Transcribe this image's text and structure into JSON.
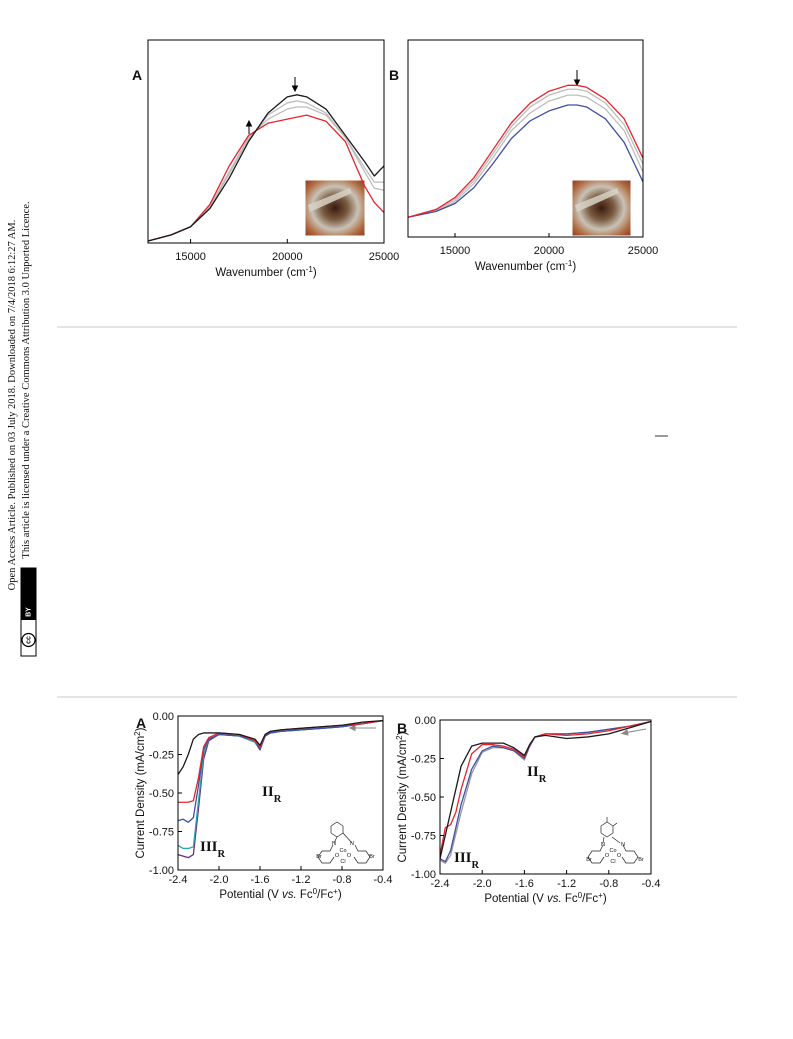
{
  "side_text": {
    "line1": "Open Access Article. Published on 03 July 2018. Downloaded on 7/4/2018 6:12:27 AM.",
    "line2": "This article is licensed under a Creative Commons Attribution 3.0 Unported Licence.",
    "badge_cc": "cc",
    "badge_by": "BY"
  },
  "chart_data": [
    {
      "type": "line",
      "panel": "A",
      "xlabel": [
        {
          "t": "Wavenumber (cm"
        },
        {
          "t": "-1",
          "sup": true
        },
        {
          "t": ")"
        }
      ],
      "xlim": [
        12800,
        25000
      ],
      "xticks": [
        15000,
        20000,
        25000
      ],
      "ylim": [
        0,
        1
      ],
      "x": [
        12800,
        14000,
        15000,
        16000,
        17000,
        18000,
        19000,
        20000,
        20500,
        21000,
        22000,
        23000,
        24000,
        24500,
        25000
      ],
      "series": [
        {
          "color": "#bdbdbd",
          "values": [
            0.01,
            0.04,
            0.08,
            0.18,
            0.35,
            0.52,
            0.61,
            0.66,
            0.67,
            0.67,
            0.63,
            0.52,
            0.35,
            0.27,
            0.26
          ]
        },
        {
          "color": "#bdbdbd",
          "values": [
            0.01,
            0.04,
            0.08,
            0.175,
            0.34,
            0.51,
            0.63,
            0.69,
            0.7,
            0.69,
            0.64,
            0.52,
            0.37,
            0.3,
            0.3
          ]
        },
        {
          "color": "#e8242b",
          "values": [
            0.01,
            0.04,
            0.08,
            0.19,
            0.38,
            0.53,
            0.59,
            0.61,
            0.62,
            0.63,
            0.6,
            0.5,
            0.28,
            0.2,
            0.15
          ]
        },
        {
          "color": "#1a1a1a",
          "values": [
            0.01,
            0.04,
            0.08,
            0.17,
            0.32,
            0.5,
            0.64,
            0.72,
            0.73,
            0.72,
            0.66,
            0.53,
            0.4,
            0.33,
            0.38
          ]
        }
      ],
      "inset_photo": true
    },
    {
      "type": "line",
      "panel": "B",
      "xlabel": [
        {
          "t": "Wavenumber (cm"
        },
        {
          "t": "-1",
          "sup": true
        },
        {
          "t": ")"
        }
      ],
      "xlim": [
        12500,
        25000
      ],
      "xticks": [
        15000,
        20000,
        25000
      ],
      "ylim": [
        0,
        1
      ],
      "x": [
        12500,
        14000,
        15000,
        16000,
        17000,
        18000,
        19000,
        20000,
        21000,
        21500,
        22000,
        23000,
        24000,
        25000
      ],
      "series": [
        {
          "color": "#bdbdbd",
          "values": [
            0.1,
            0.13,
            0.18,
            0.27,
            0.4,
            0.54,
            0.63,
            0.69,
            0.72,
            0.72,
            0.71,
            0.65,
            0.54,
            0.33
          ]
        },
        {
          "color": "#bdbdbd",
          "values": [
            0.1,
            0.135,
            0.19,
            0.285,
            0.42,
            0.56,
            0.66,
            0.72,
            0.75,
            0.75,
            0.74,
            0.68,
            0.57,
            0.37
          ]
        },
        {
          "color": "#3f4fa3",
          "values": [
            0.1,
            0.13,
            0.17,
            0.25,
            0.37,
            0.5,
            0.59,
            0.64,
            0.67,
            0.67,
            0.66,
            0.6,
            0.48,
            0.28
          ]
        },
        {
          "color": "#e8242b",
          "values": [
            0.1,
            0.14,
            0.2,
            0.3,
            0.44,
            0.58,
            0.68,
            0.74,
            0.77,
            0.77,
            0.76,
            0.7,
            0.6,
            0.4
          ]
        }
      ],
      "inset_photo": true
    },
    {
      "type": "line",
      "panel": "A",
      "xlabel": [
        {
          "t": "Potential (V "
        },
        {
          "t": "vs.",
          "italic": true
        },
        {
          "t": " Fc"
        },
        {
          "t": "0",
          "sup": true
        },
        {
          "t": "/Fc"
        },
        {
          "t": "+",
          "sup": true
        },
        {
          "t": ")"
        }
      ],
      "ylabel": [
        {
          "t": "Current Density (mA/cm"
        },
        {
          "t": "2",
          "sup": true
        },
        {
          "t": ")"
        }
      ],
      "xlim": [
        -2.4,
        -0.4
      ],
      "xticks": [
        -2.4,
        {
          "value": -2,
          "label": "-2.0"
        },
        -1.6,
        -1.2,
        -0.8,
        -0.4
      ],
      "ylim": [
        -1,
        0
      ],
      "yticks": [
        {
          "value": 0,
          "label": "0.00"
        },
        -0.25,
        {
          "value": -0.5,
          "label": "-0.50"
        },
        -0.75,
        {
          "value": -1,
          "label": "-1.00"
        }
      ],
      "x": [
        -2.4,
        -2.35,
        -2.3,
        -2.25,
        -2.2,
        -2.15,
        -2.1,
        -2.0,
        -1.8,
        -1.65,
        -1.6,
        -1.55,
        -1.5,
        -1.4,
        -1.2,
        -1.0,
        -0.8,
        -0.6,
        -0.4
      ],
      "series": [
        {
          "color": "#6a2c7a",
          "values": [
            -0.9,
            -0.91,
            -0.92,
            -0.9,
            -0.6,
            -0.28,
            -0.16,
            -0.12,
            -0.13,
            -0.17,
            -0.22,
            -0.13,
            -0.11,
            -0.1,
            -0.09,
            -0.08,
            -0.07,
            -0.05,
            -0.03
          ]
        },
        {
          "color": "#2aa8b0",
          "values": [
            -0.84,
            -0.86,
            -0.86,
            -0.85,
            -0.55,
            -0.25,
            -0.15,
            -0.12,
            -0.13,
            -0.17,
            -0.21,
            -0.13,
            -0.11,
            -0.1,
            -0.09,
            -0.08,
            -0.07,
            -0.05,
            -0.03
          ]
        },
        {
          "color": "#3f4fa3",
          "values": [
            -0.68,
            -0.67,
            -0.69,
            -0.66,
            -0.45,
            -0.22,
            -0.15,
            -0.12,
            -0.13,
            -0.16,
            -0.21,
            -0.13,
            -0.11,
            -0.1,
            -0.09,
            -0.08,
            -0.07,
            -0.05,
            -0.03
          ]
        },
        {
          "color": "#e8242b",
          "values": [
            -0.56,
            -0.56,
            -0.56,
            -0.55,
            -0.4,
            -0.2,
            -0.14,
            -0.11,
            -0.12,
            -0.16,
            -0.2,
            -0.12,
            -0.1,
            -0.09,
            -0.08,
            -0.07,
            -0.06,
            -0.05,
            -0.03
          ]
        },
        {
          "color": "#1a1a1a",
          "values": [
            -0.38,
            -0.33,
            -0.25,
            -0.15,
            -0.12,
            -0.11,
            -0.11,
            -0.11,
            -0.12,
            -0.15,
            -0.19,
            -0.12,
            -0.1,
            -0.09,
            -0.08,
            -0.07,
            -0.06,
            -0.04,
            -0.03
          ]
        }
      ],
      "annotations": [
        [
          {
            "t": "II"
          },
          {
            "t": "R",
            "sub": true
          }
        ],
        [
          {
            "t": "III"
          },
          {
            "t": "R",
            "sub": true
          }
        ]
      ],
      "structure_labels": [
        "Br",
        "Br",
        "N",
        "N",
        "Co",
        "O",
        "O",
        "Cl"
      ]
    },
    {
      "type": "line",
      "panel": "B",
      "xlabel": [
        {
          "t": "Potential (V "
        },
        {
          "t": "vs.",
          "italic": true
        },
        {
          "t": " Fc"
        },
        {
          "t": "0",
          "sup": true
        },
        {
          "t": "/Fc"
        },
        {
          "t": "+",
          "sup": true
        },
        {
          "t": ")"
        }
      ],
      "ylabel": [
        {
          "t": "Current Density (mA/cm"
        },
        {
          "t": "2",
          "sup": true
        },
        {
          "t": ")"
        }
      ],
      "xlim": [
        -2.4,
        -0.4
      ],
      "xticks": [
        -2.4,
        {
          "value": -2,
          "label": "-2.0"
        },
        -1.6,
        -1.2,
        -0.8,
        -0.4
      ],
      "ylim": [
        -1,
        0
      ],
      "yticks": [
        {
          "value": 0,
          "label": "0.00"
        },
        -0.25,
        {
          "value": -0.5,
          "label": "-0.50"
        },
        -0.75,
        {
          "value": -1,
          "label": "-1.00"
        }
      ],
      "x": [
        -2.4,
        -2.35,
        -2.3,
        -2.25,
        -2.2,
        -2.1,
        -2.0,
        -1.9,
        -1.8,
        -1.7,
        -1.6,
        -1.55,
        -1.5,
        -1.4,
        -1.2,
        -1.0,
        -0.8,
        -0.6,
        -0.4
      ],
      "series": [
        {
          "color": "#9a9a9a",
          "values": [
            -0.91,
            -0.93,
            -0.88,
            -0.74,
            -0.6,
            -0.35,
            -0.21,
            -0.18,
            -0.18,
            -0.2,
            -0.26,
            -0.17,
            -0.11,
            -0.09,
            -0.09,
            -0.08,
            -0.06,
            -0.04,
            -0.01
          ]
        },
        {
          "color": "#3f4fa3",
          "values": [
            -0.9,
            -0.92,
            -0.85,
            -0.7,
            -0.55,
            -0.32,
            -0.2,
            -0.17,
            -0.18,
            -0.2,
            -0.25,
            -0.17,
            -0.11,
            -0.09,
            -0.09,
            -0.08,
            -0.06,
            -0.04,
            -0.01
          ]
        },
        {
          "color": "#e8242b",
          "values": [
            -0.88,
            -0.7,
            -0.68,
            -0.6,
            -0.45,
            -0.22,
            -0.16,
            -0.16,
            -0.17,
            -0.19,
            -0.24,
            -0.16,
            -0.11,
            -0.09,
            -0.1,
            -0.09,
            -0.07,
            -0.04,
            -0.01
          ]
        },
        {
          "color": "#1a1a1a",
          "values": [
            -0.9,
            -0.75,
            -0.6,
            -0.45,
            -0.3,
            -0.17,
            -0.15,
            -0.15,
            -0.15,
            -0.18,
            -0.23,
            -0.16,
            -0.11,
            -0.1,
            -0.12,
            -0.11,
            -0.09,
            -0.05,
            -0.01
          ]
        }
      ],
      "annotations": [
        [
          {
            "t": "II"
          },
          {
            "t": "R",
            "sub": true
          }
        ],
        [
          {
            "t": "III"
          },
          {
            "t": "R",
            "sub": true
          }
        ]
      ],
      "structure_labels": [
        "Br",
        "Br",
        "N",
        "N",
        "Co",
        "O",
        "O",
        "Cl"
      ]
    }
  ]
}
